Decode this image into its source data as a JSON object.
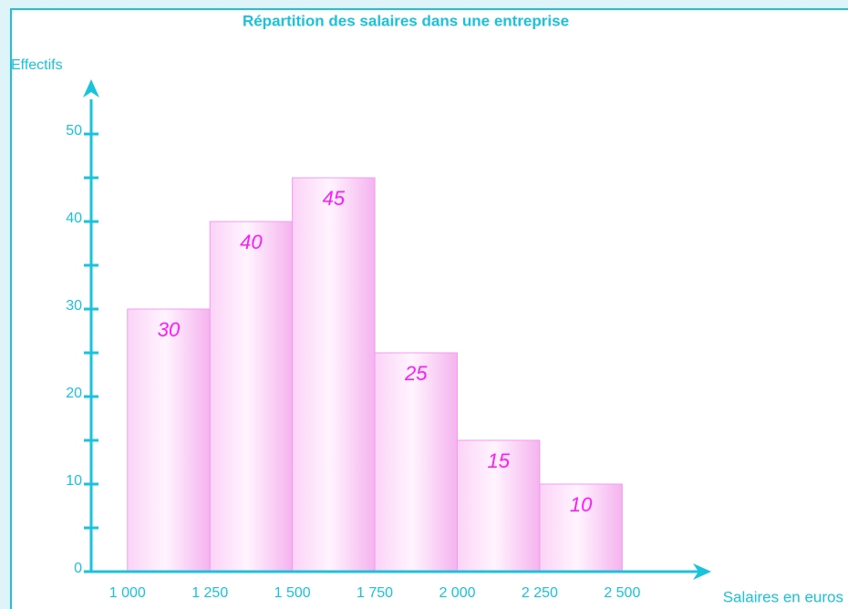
{
  "chart_data": {
    "type": "histogram",
    "title": "Répartition des salaires dans une entreprise",
    "y_label": "Effectifs",
    "x_label": "Salaires en euros",
    "bins": [
      1000,
      1250,
      1500,
      1750,
      2000,
      2250,
      2500
    ],
    "values": [
      30,
      40,
      45,
      25,
      15,
      10
    ],
    "color": "#f7bff2",
    "xlim": [
      890,
      2770
    ],
    "ylim": [
      0,
      55
    ],
    "xticks": [
      {
        "value": 1000,
        "label": "1 000"
      },
      {
        "value": 1250,
        "label": "1 250"
      },
      {
        "value": 1500,
        "label": "1 500"
      },
      {
        "value": 1750,
        "label": "1 750"
      },
      {
        "value": 2000,
        "label": "2 000"
      },
      {
        "value": 2250,
        "label": "2 250"
      },
      {
        "value": 2500,
        "label": "2 500"
      }
    ],
    "yticks": [
      0,
      10,
      20,
      30,
      40,
      50
    ],
    "yminorticks": [
      5,
      15,
      25,
      35,
      45
    ],
    "axis_color": "#19c3dc",
    "label_color": "#ff1aff"
  }
}
